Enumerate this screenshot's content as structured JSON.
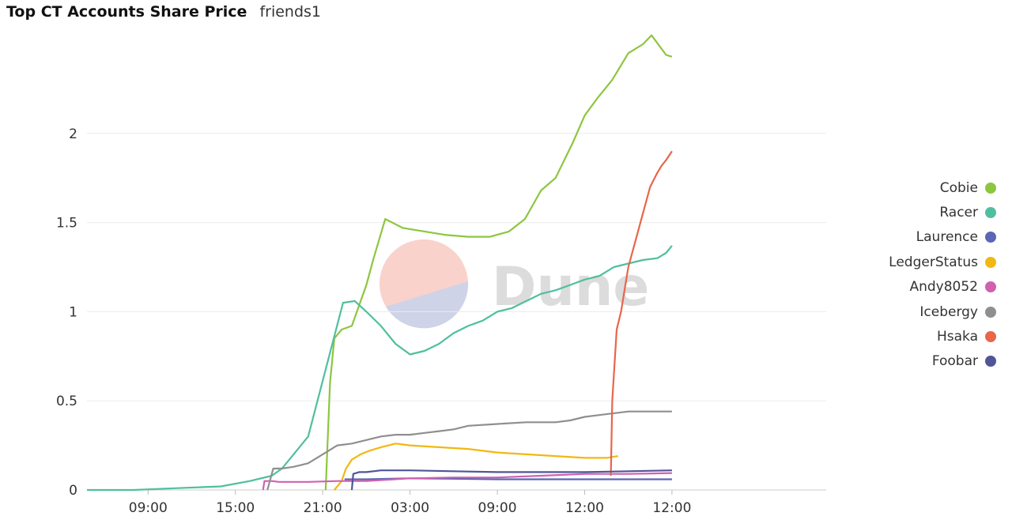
{
  "header": {
    "title": "Top CT Accounts Share Price",
    "subtitle": "friends1"
  },
  "watermark": {
    "text": "Dune"
  },
  "chart_data": {
    "type": "line",
    "title": "Top CT Accounts Share Price",
    "xlabel": "",
    "ylabel": "",
    "ylim": [
      0,
      2.5
    ],
    "xlim": [
      -4.2,
      46.6
    ],
    "grid": true,
    "legend_position": "right",
    "y_ticks": [
      0,
      0.5,
      1,
      1.5,
      2
    ],
    "y_tick_labels": [
      "0",
      "0.5",
      "1",
      "1.5",
      "2"
    ],
    "x_ticks": [
      0,
      6,
      12,
      18,
      24,
      30,
      36
    ],
    "x_tick_labels": [
      "09:00",
      "15:00",
      "21:00",
      "03:00",
      "09:00",
      "12:00",
      "12:00"
    ],
    "x_unit": "hours since first 09:00 tick",
    "series": [
      {
        "name": "Cobie",
        "color": "#8dc63f",
        "x": [
          12.2,
          12.5,
          12.8,
          13.3,
          14.0,
          15.0,
          15.5,
          16.3,
          17.5,
          19.0,
          20.5,
          22.0,
          23.5,
          24.8,
          25.9,
          27.0,
          28.0,
          29.2,
          30.0,
          30.9,
          31.9,
          33.0,
          34.0,
          34.6,
          35.6,
          36.0
        ],
        "y": [
          0,
          0.6,
          0.85,
          0.9,
          0.92,
          1.15,
          1.3,
          1.52,
          1.47,
          1.45,
          1.43,
          1.42,
          1.42,
          1.45,
          1.52,
          1.68,
          1.75,
          1.95,
          2.1,
          2.2,
          2.3,
          2.45,
          2.5,
          2.55,
          2.44,
          2.43
        ]
      },
      {
        "name": "Racer",
        "color": "#4fbf9f",
        "x": [
          -4.2,
          -1.0,
          2.0,
          5.0,
          7.0,
          8.5,
          9.2,
          10.0,
          11.0,
          11.8,
          12.6,
          13.4,
          14.2,
          15.0,
          16.0,
          17.0,
          18.0,
          19.0,
          20.0,
          21.0,
          22.0,
          23.0,
          24.0,
          25.0,
          26.0,
          27.0,
          28.0,
          29.0,
          30.0,
          31.0,
          32.0,
          33.0,
          34.0,
          35.0,
          35.6,
          36.0
        ],
        "y": [
          0,
          0,
          0.01,
          0.02,
          0.05,
          0.08,
          0.12,
          0.2,
          0.3,
          0.55,
          0.8,
          1.05,
          1.06,
          1.0,
          0.92,
          0.82,
          0.76,
          0.78,
          0.82,
          0.88,
          0.92,
          0.95,
          1.0,
          1.02,
          1.06,
          1.1,
          1.12,
          1.15,
          1.18,
          1.2,
          1.25,
          1.27,
          1.29,
          1.3,
          1.33,
          1.37
        ]
      },
      {
        "name": "Laurence",
        "color": "#5b66b5",
        "x": [
          13.5,
          15.0,
          18.0,
          21.0,
          24.0,
          27.0,
          30.0,
          33.0,
          36.0
        ],
        "y": [
          0.06,
          0.06,
          0.065,
          0.063,
          0.06,
          0.06,
          0.06,
          0.06,
          0.06
        ]
      },
      {
        "name": "LedgerStatus",
        "color": "#f2b811",
        "x": [
          12.8,
          13.3,
          13.6,
          14.0,
          14.6,
          15.2,
          16.0,
          17.0,
          18.0,
          20.0,
          22.0,
          24.0,
          26.0,
          28.0,
          30.0,
          31.5,
          32.3
        ],
        "y": [
          0,
          0.05,
          0.12,
          0.17,
          0.2,
          0.22,
          0.24,
          0.26,
          0.25,
          0.24,
          0.23,
          0.21,
          0.2,
          0.19,
          0.18,
          0.18,
          0.19
        ]
      },
      {
        "name": "Andy8052",
        "color": "#d060b0",
        "x": [
          7.9,
          8.0,
          8.5,
          9.0,
          11.0,
          13.0,
          15.0,
          18.0,
          21.0,
          24.0,
          27.0,
          30.0,
          33.0,
          36.0
        ],
        "y": [
          0,
          0.05,
          0.05,
          0.045,
          0.045,
          0.05,
          0.05,
          0.065,
          0.07,
          0.07,
          0.08,
          0.09,
          0.09,
          0.095
        ]
      },
      {
        "name": "Icebergy",
        "color": "#8f8f8f",
        "x": [
          8.2,
          8.6,
          9.2,
          10.0,
          11.0,
          12.0,
          13.0,
          14.0,
          15.0,
          16.0,
          17.0,
          18.0,
          19.0,
          20.0,
          21.0,
          22.0,
          24.0,
          26.0,
          28.0,
          29.0,
          30.0,
          31.0,
          33.0,
          36.0
        ],
        "y": [
          0,
          0.12,
          0.12,
          0.13,
          0.15,
          0.2,
          0.25,
          0.26,
          0.28,
          0.3,
          0.31,
          0.31,
          0.32,
          0.33,
          0.34,
          0.36,
          0.37,
          0.38,
          0.38,
          0.39,
          0.41,
          0.42,
          0.44,
          0.44
        ]
      },
      {
        "name": "Hsaka",
        "color": "#e8664a",
        "x": [
          31.8,
          31.9,
          32.2,
          32.5,
          33.0,
          33.5,
          34.0,
          34.5,
          35.0,
          35.3,
          35.6,
          36.0
        ],
        "y": [
          0.08,
          0.5,
          0.9,
          1.0,
          1.25,
          1.4,
          1.55,
          1.7,
          1.78,
          1.82,
          1.85,
          1.9
        ]
      },
      {
        "name": "Foobar",
        "color": "#505598",
        "x": [
          14.0,
          14.1,
          14.5,
          15.0,
          16.0,
          18.0,
          21.0,
          24.0,
          27.0,
          30.0,
          33.0,
          36.0
        ],
        "y": [
          0,
          0.09,
          0.1,
          0.1,
          0.11,
          0.11,
          0.105,
          0.1,
          0.1,
          0.1,
          0.105,
          0.11
        ]
      }
    ]
  }
}
